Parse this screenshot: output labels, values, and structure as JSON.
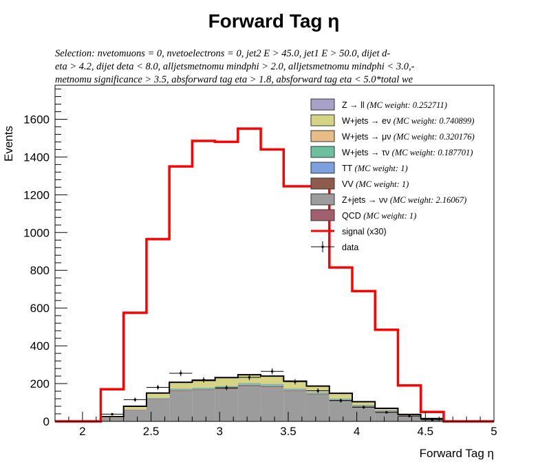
{
  "chart_data": {
    "type": "stacked-histogram",
    "title": "Forward Tag η",
    "selection": [
      "Selection: nvetomuons  =  0, nvetoelectrons  =  0, jet2 E > 45.0, jet1 E > 50.0, dijet d-",
      "eta > 4.2, dijet deta < 8.0, alljetsmetnomu mindphi > 2.0, alljetsmetnomu mindphi < 3.0,-",
      " metnomu significance > 3.5, absforward tag eta > 1.8, absforward tag eta < 5.0*total we"
    ],
    "xlabel": "Forward Tag η",
    "ylabel": "Events",
    "xlim": [
      1.8,
      5.0
    ],
    "ylim": [
      0,
      1780
    ],
    "x_ticks": [
      "2",
      "2.5",
      "3",
      "3.5",
      "4",
      "4.5",
      "5"
    ],
    "y_ticks": [
      "0",
      "200",
      "400",
      "600",
      "800",
      "1000",
      "1200",
      "1400",
      "1600"
    ],
    "bin_edges": [
      1.8,
      1.9667,
      2.1333,
      2.3,
      2.4667,
      2.6333,
      2.8,
      2.9667,
      3.1333,
      3.3,
      3.4667,
      3.6333,
      3.8,
      3.9667,
      4.1333,
      4.3,
      4.4667,
      4.6333,
      4.8,
      5.0
    ],
    "series": [
      {
        "name": "QCD",
        "weight_label": "(MC weight: 1)",
        "color": "#a2606e",
        "values": [
          0,
          0,
          0,
          0,
          1,
          1,
          1,
          1,
          1,
          1,
          1,
          1,
          1,
          0,
          0,
          0,
          0,
          0,
          0
        ]
      },
      {
        "name": "Z+jets → νν",
        "weight_label": "(MC weight: 2.16067)",
        "color": "#9c9c9c",
        "values": [
          0,
          0,
          17,
          58,
          115,
          160,
          165,
          170,
          185,
          180,
          160,
          140,
          110,
          80,
          55,
          30,
          12,
          2,
          0
        ]
      },
      {
        "name": "VV",
        "weight_label": "(MC weight: 1)",
        "color": "#8e5b4c",
        "values": [
          0,
          0,
          1,
          2,
          3,
          4,
          4,
          5,
          5,
          5,
          4,
          4,
          3,
          2,
          2,
          1,
          1,
          0,
          0
        ]
      },
      {
        "name": "TT",
        "weight_label": "(MC weight: 1)",
        "color": "#7d9fdd",
        "values": [
          0,
          0,
          0,
          1,
          2,
          2,
          2,
          3,
          3,
          3,
          2,
          2,
          2,
          1,
          1,
          0,
          0,
          0,
          0
        ]
      },
      {
        "name": "W+jets → τν",
        "weight_label": "(MC weight: 0.187701)",
        "color": "#6cc0a0",
        "values": [
          0,
          0,
          1,
          2,
          4,
          6,
          7,
          8,
          8,
          8,
          7,
          6,
          5,
          4,
          2,
          1,
          0,
          0,
          0
        ]
      },
      {
        "name": "W+jets → μν",
        "weight_label": "(MC weight: 0.320176)",
        "color": "#e8bc86",
        "values": [
          0,
          0,
          1,
          2,
          3,
          4,
          4,
          5,
          5,
          5,
          4,
          4,
          3,
          2,
          1,
          1,
          0,
          0,
          0
        ]
      },
      {
        "name": "W+jets → eν",
        "weight_label": "(MC weight: 0.740899)",
        "color": "#d5d384",
        "values": [
          0,
          0,
          5,
          15,
          22,
          30,
          34,
          40,
          40,
          38,
          35,
          30,
          25,
          15,
          8,
          4,
          2,
          0,
          0
        ]
      },
      {
        "name": "Z → ll",
        "weight_label": "(MC weight: 0.252711)",
        "color": "#a9a0c8",
        "values": [
          0,
          0,
          0,
          0,
          0,
          0,
          0,
          0,
          0,
          0,
          0,
          0,
          0,
          0,
          0,
          0,
          0,
          0,
          0
        ]
      }
    ],
    "signal": {
      "name": "signal (x30)",
      "color": "#ff0000",
      "values": [
        0,
        0,
        170,
        575,
        965,
        1350,
        1485,
        1480,
        1550,
        1440,
        1245,
        1245,
        815,
        690,
        485,
        190,
        50,
        0,
        0
      ]
    },
    "data": {
      "name": "data",
      "values": [
        0,
        0,
        38,
        115,
        180,
        255,
        220,
        178,
        233,
        265,
        210,
        162,
        110,
        75,
        48,
        28,
        8,
        0,
        0
      ]
    },
    "legend_placement": "top-right"
  }
}
